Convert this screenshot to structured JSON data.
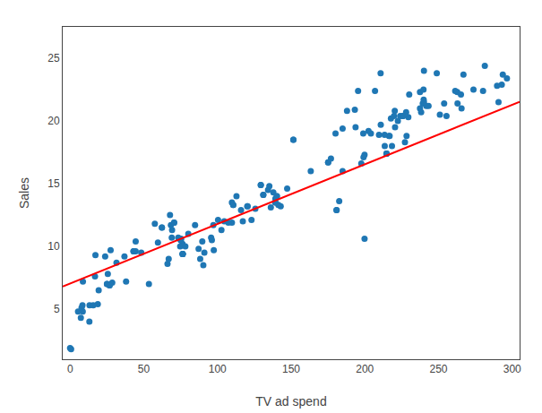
{
  "chart_data": {
    "type": "scatter",
    "xlabel": "TV ad spend",
    "ylabel": "Sales",
    "xlim": [
      -5,
      305
    ],
    "ylim": [
      1,
      27.5
    ],
    "xticks": [
      0,
      50,
      100,
      150,
      200,
      250,
      300
    ],
    "yticks": [
      5,
      10,
      15,
      20,
      25
    ],
    "grid": false,
    "series": [
      {
        "type": "scatter",
        "marker": "circle",
        "color": "#1f77b4",
        "x": [
          230.1,
          44.5,
          17.2,
          151.5,
          180.8,
          8.7,
          57.5,
          120.2,
          8.6,
          199.8,
          66.1,
          214.7,
          23.8,
          97.5,
          204.1,
          195.4,
          67.8,
          281.4,
          69.2,
          147.3,
          218.4,
          237.4,
          13.2,
          228.3,
          62.3,
          262.9,
          142.9,
          240.1,
          248.8,
          70.6,
          292.9,
          112.9,
          97.2,
          265.6,
          95.7,
          290.7,
          266.9,
          74.7,
          43.1,
          228.0,
          202.5,
          177.0,
          293.6,
          206.9,
          25.1,
          175.1,
          89.7,
          239.9,
          227.2,
          66.9,
          199.8,
          100.4,
          216.4,
          182.6,
          262.7,
          198.9,
          7.3,
          136.2,
          210.8,
          210.7,
          53.5,
          261.3,
          239.3,
          102.7,
          131.1,
          69.0,
          31.5,
          139.3,
          237.4,
          216.8,
          199.1,
          109.8,
          26.8,
          129.4,
          213.4,
          16.9,
          27.5,
          120.5,
          5.4,
          116.0,
          76.4,
          239.8,
          75.3,
          68.4,
          213.5,
          193.2,
          76.3,
          110.7,
          88.3,
          109.8,
          134.3,
          28.6,
          217.7,
          250.9,
          107.4,
          163.3,
          197.6,
          184.9,
          289.7,
          135.2,
          222.4,
          296.4,
          280.2,
          187.9,
          238.2,
          137.9,
          25.0,
          90.4,
          13.1,
          255.4,
          225.8,
          241.7,
          175.1,
          209.6,
          78.2,
          75.1,
          139.2,
          76.4,
          125.7,
          19.4,
          141.3,
          18.8,
          224.0,
          123.1,
          229.5,
          87.2,
          7.8,
          80.2,
          220.3,
          59.6,
          0.7,
          265.2,
          8.4,
          219.8,
          36.9,
          48.3,
          25.6,
          273.7,
          43.0,
          184.9,
          73.4,
          193.7,
          220.5,
          104.6,
          96.2,
          140.3,
          240.1,
          243.2,
          38.0,
          44.5,
          139.3,
          76.4,
          76.4,
          225.8,
          117.2,
          15.7,
          110.7,
          84.8,
          214.7,
          253.8,
          0.0,
          75.1,
          214.7,
          91.1,
          140.3,
          62.3,
          26.8,
          129.4,
          131.1,
          70.6,
          180.8,
          151.5,
          180.1
        ],
        "values": [
          22.1,
          10.4,
          9.3,
          18.5,
          12.9,
          7.2,
          11.8,
          13.2,
          4.8,
          10.6,
          8.6,
          17.4,
          9.2,
          9.7,
          19.0,
          22.4,
          12.5,
          24.4,
          11.3,
          14.6,
          18.0,
          22.3,
          5.3,
          18.8,
          11.5,
          21.4,
          13.2,
          24.0,
          23.8,
          11.9,
          22.9,
          14.0,
          11.7,
          21.0,
          10.7,
          21.5,
          23.7,
          10.0,
          9.6,
          20.7,
          19.2,
          17.0,
          23.7,
          22.4,
          7.0,
          16.7,
          10.4,
          21.7,
          18.3,
          9.0,
          17.3,
          12.1,
          18.8,
          13.6,
          22.3,
          19.0,
          4.3,
          13.1,
          19.7,
          23.8,
          7.0,
          22.4,
          21.4,
          11.3,
          14.1,
          10.7,
          8.7,
          13.8,
          21.0,
          18.8,
          17.1,
          13.5,
          6.9,
          14.9,
          18.9,
          7.6,
          9.7,
          13.2,
          4.8,
          12.9,
          9.4,
          22.5,
          10.6,
          11.7,
          18.0,
          20.9,
          10.2,
          13.3,
          9.0,
          11.9,
          14.5,
          7.1,
          20.2,
          20.5,
          11.9,
          16.0,
          16.6,
          19.4,
          22.8,
          14.8,
          20.0,
          23.4,
          22.4,
          20.8,
          20.7,
          14.3,
          7.0,
          8.5,
          4.0,
          20.4,
          20.4,
          21.2,
          16.7,
          18.9,
          10.0,
          10.5,
          13.5,
          9.4,
          13.0,
          6.5,
          13.3,
          5.4,
          20.4,
          12.1,
          20.3,
          9.8,
          5.1,
          11.0,
          20.8,
          10.3,
          1.8,
          22.1,
          5.3,
          20.4,
          9.2,
          9.5,
          7.8,
          22.5,
          9.6,
          16.0,
          10.7,
          19.5,
          19.5,
          12.0,
          10.5,
          14.0,
          21.5,
          21.2,
          7.2,
          9.6,
          13.5,
          9.4,
          9.4,
          20.4,
          12.0,
          5.3,
          13.3,
          11.7,
          17.4,
          21.4,
          1.9,
          10.5,
          17.4,
          9.5,
          14.0,
          11.5,
          6.9,
          14.9,
          14.1,
          11.9,
          12.9,
          18.5,
          19.0
        ]
      },
      {
        "type": "line",
        "line_style": "solid",
        "color": "red",
        "x": [
          -5,
          305
        ],
        "values": [
          6.794909,
          21.531379
        ]
      }
    ]
  }
}
